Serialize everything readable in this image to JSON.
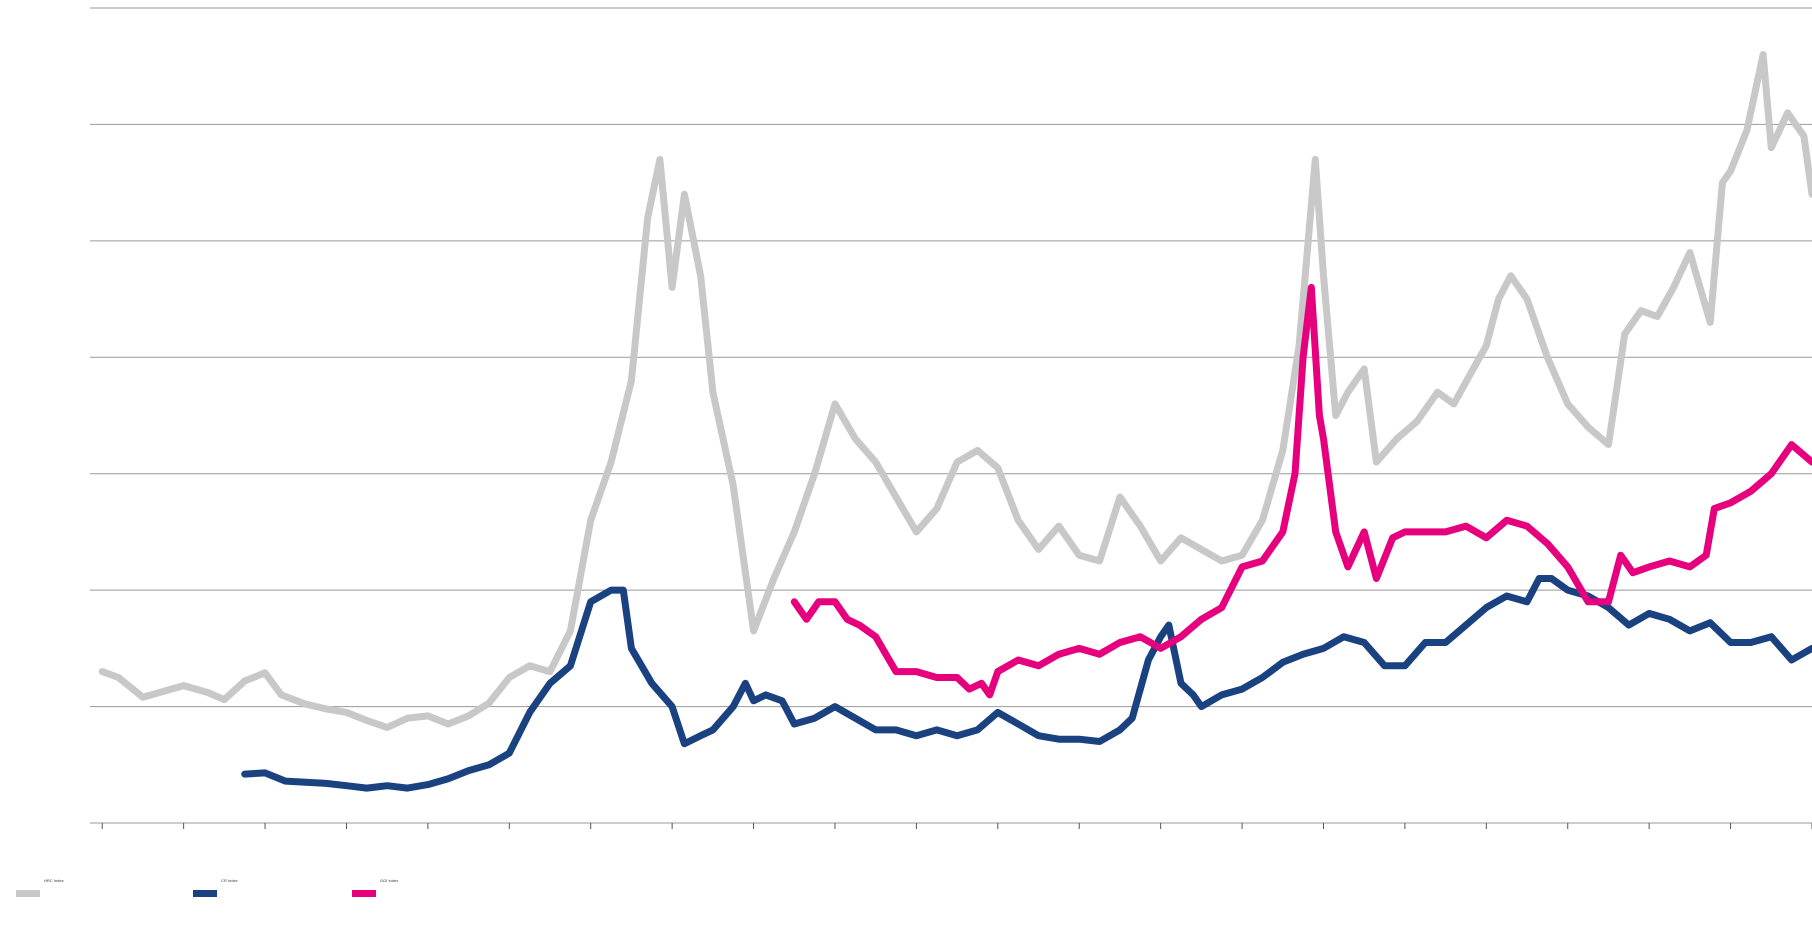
{
  "chart_data": {
    "type": "line",
    "title": "",
    "xlabel": "",
    "ylabel": "",
    "x_range": [
      1982.7,
      2025.0
    ],
    "ylim": [
      0,
      7
    ],
    "y_ticks": [
      0,
      1,
      2,
      3,
      4,
      5,
      6,
      7
    ],
    "x_ticks": [
      1983,
      1985,
      1987,
      1989,
      1991,
      1993,
      1995,
      1997,
      1999,
      2001,
      2003,
      2005,
      2007,
      2009,
      2011,
      2013,
      2015,
      2017,
      2019,
      2021,
      2023,
      2025
    ],
    "grid": true,
    "legend_position": "bottom-left",
    "colors": {
      "hrc": "#c8c8c8",
      "cr": "#1a4280",
      "ggi": "#e6007e",
      "y_tick": "#e6007e",
      "x_tick": "#3b4fb8",
      "grid": "#999999"
    },
    "series": [
      {
        "name": "HRC Index",
        "color": "#c8c8c8",
        "points": [
          [
            1983.0,
            1.3
          ],
          [
            1983.4,
            1.25
          ],
          [
            1984.0,
            1.08
          ],
          [
            1984.4,
            1.12
          ],
          [
            1985.0,
            1.18
          ],
          [
            1985.6,
            1.12
          ],
          [
            1986.0,
            1.06
          ],
          [
            1986.5,
            1.22
          ],
          [
            1987.0,
            1.29
          ],
          [
            1987.4,
            1.1
          ],
          [
            1988.0,
            1.02
          ],
          [
            1988.5,
            0.98
          ],
          [
            1989.0,
            0.95
          ],
          [
            1989.5,
            0.88
          ],
          [
            1990.0,
            0.82
          ],
          [
            1990.5,
            0.9
          ],
          [
            1991.0,
            0.92
          ],
          [
            1991.5,
            0.85
          ],
          [
            1992.0,
            0.92
          ],
          [
            1992.5,
            1.03
          ],
          [
            1993.0,
            1.25
          ],
          [
            1993.5,
            1.35
          ],
          [
            1994.0,
            1.3
          ],
          [
            1994.5,
            1.65
          ],
          [
            1995.0,
            2.6
          ],
          [
            1995.5,
            3.1
          ],
          [
            1996.0,
            3.8
          ],
          [
            1996.4,
            5.2
          ],
          [
            1996.7,
            5.7
          ],
          [
            1997.0,
            4.6
          ],
          [
            1997.3,
            5.4
          ],
          [
            1997.7,
            4.7
          ],
          [
            1998.0,
            3.7
          ],
          [
            1998.5,
            2.9
          ],
          [
            1999.0,
            1.65
          ],
          [
            1999.5,
            2.1
          ],
          [
            2000.0,
            2.5
          ],
          [
            2000.5,
            3.0
          ],
          [
            2001.0,
            3.6
          ],
          [
            2001.5,
            3.3
          ],
          [
            2002.0,
            3.1
          ],
          [
            2002.5,
            2.8
          ],
          [
            2003.0,
            2.5
          ],
          [
            2003.5,
            2.7
          ],
          [
            2004.0,
            3.1
          ],
          [
            2004.5,
            3.2
          ],
          [
            2005.0,
            3.05
          ],
          [
            2005.5,
            2.6
          ],
          [
            2006.0,
            2.35
          ],
          [
            2006.5,
            2.55
          ],
          [
            2007.0,
            2.3
          ],
          [
            2007.5,
            2.25
          ],
          [
            2008.0,
            2.8
          ],
          [
            2008.5,
            2.55
          ],
          [
            2009.0,
            2.25
          ],
          [
            2009.5,
            2.45
          ],
          [
            2010.0,
            2.35
          ],
          [
            2010.5,
            2.25
          ],
          [
            2011.0,
            2.3
          ],
          [
            2011.5,
            2.6
          ],
          [
            2012.0,
            3.2
          ],
          [
            2012.4,
            4.1
          ],
          [
            2012.8,
            5.7
          ],
          [
            2013.0,
            4.7
          ],
          [
            2013.3,
            3.5
          ],
          [
            2013.6,
            3.7
          ],
          [
            2014.0,
            3.9
          ],
          [
            2014.3,
            3.1
          ],
          [
            2014.8,
            3.3
          ],
          [
            2015.3,
            3.45
          ],
          [
            2015.8,
            3.7
          ],
          [
            2016.2,
            3.6
          ],
          [
            2016.6,
            3.85
          ],
          [
            2017.0,
            4.1
          ],
          [
            2017.3,
            4.5
          ],
          [
            2017.6,
            4.7
          ],
          [
            2018.0,
            4.5
          ],
          [
            2018.5,
            4.0
          ],
          [
            2019.0,
            3.6
          ],
          [
            2019.5,
            3.4
          ],
          [
            2020.0,
            3.25
          ],
          [
            2020.4,
            4.2
          ],
          [
            2020.8,
            4.4
          ],
          [
            2021.2,
            4.35
          ],
          [
            2021.6,
            4.6
          ],
          [
            2022.0,
            4.9
          ],
          [
            2022.5,
            4.3
          ],
          [
            2022.8,
            5.5
          ],
          [
            2023.0,
            5.6
          ],
          [
            2023.4,
            5.95
          ],
          [
            2023.8,
            6.6
          ],
          [
            2024.0,
            5.8
          ],
          [
            2024.4,
            6.1
          ],
          [
            2024.8,
            5.9
          ],
          [
            2025.0,
            5.4
          ]
        ]
      },
      {
        "name": "CR Index",
        "color": "#1a4280",
        "points": [
          [
            1986.5,
            0.42
          ],
          [
            1987.0,
            0.43
          ],
          [
            1987.5,
            0.36
          ],
          [
            1988.0,
            0.35
          ],
          [
            1988.5,
            0.34
          ],
          [
            1989.0,
            0.32
          ],
          [
            1989.5,
            0.3
          ],
          [
            1990.0,
            0.32
          ],
          [
            1990.5,
            0.3
          ],
          [
            1991.0,
            0.33
          ],
          [
            1991.5,
            0.38
          ],
          [
            1992.0,
            0.45
          ],
          [
            1992.5,
            0.5
          ],
          [
            1993.0,
            0.6
          ],
          [
            1993.5,
            0.95
          ],
          [
            1994.0,
            1.2
          ],
          [
            1994.5,
            1.35
          ],
          [
            1995.0,
            1.9
          ],
          [
            1995.5,
            2.0
          ],
          [
            1995.8,
            2.0
          ],
          [
            1996.0,
            1.5
          ],
          [
            1996.5,
            1.2
          ],
          [
            1997.0,
            1.0
          ],
          [
            1997.3,
            0.68
          ],
          [
            1997.7,
            0.75
          ],
          [
            1998.0,
            0.8
          ],
          [
            1998.5,
            1.0
          ],
          [
            1998.8,
            1.2
          ],
          [
            1999.0,
            1.05
          ],
          [
            1999.3,
            1.1
          ],
          [
            1999.7,
            1.05
          ],
          [
            2000.0,
            0.85
          ],
          [
            2000.5,
            0.9
          ],
          [
            2001.0,
            1.0
          ],
          [
            2001.5,
            0.9
          ],
          [
            2002.0,
            0.8
          ],
          [
            2002.5,
            0.8
          ],
          [
            2003.0,
            0.75
          ],
          [
            2003.5,
            0.8
          ],
          [
            2004.0,
            0.75
          ],
          [
            2004.5,
            0.8
          ],
          [
            2005.0,
            0.95
          ],
          [
            2005.5,
            0.85
          ],
          [
            2006.0,
            0.75
          ],
          [
            2006.5,
            0.72
          ],
          [
            2007.0,
            0.72
          ],
          [
            2007.5,
            0.7
          ],
          [
            2008.0,
            0.8
          ],
          [
            2008.3,
            0.9
          ],
          [
            2008.7,
            1.4
          ],
          [
            2009.0,
            1.6
          ],
          [
            2009.2,
            1.7
          ],
          [
            2009.5,
            1.2
          ],
          [
            2009.8,
            1.1
          ],
          [
            2010.0,
            1.0
          ],
          [
            2010.5,
            1.1
          ],
          [
            2011.0,
            1.15
          ],
          [
            2011.5,
            1.25
          ],
          [
            2012.0,
            1.38
          ],
          [
            2012.5,
            1.45
          ],
          [
            2013.0,
            1.5
          ],
          [
            2013.5,
            1.6
          ],
          [
            2014.0,
            1.55
          ],
          [
            2014.5,
            1.35
          ],
          [
            2015.0,
            1.35
          ],
          [
            2015.5,
            1.55
          ],
          [
            2016.0,
            1.55
          ],
          [
            2016.5,
            1.7
          ],
          [
            2017.0,
            1.85
          ],
          [
            2017.5,
            1.95
          ],
          [
            2018.0,
            1.9
          ],
          [
            2018.3,
            2.1
          ],
          [
            2018.6,
            2.1
          ],
          [
            2019.0,
            2.0
          ],
          [
            2019.5,
            1.95
          ],
          [
            2020.0,
            1.85
          ],
          [
            2020.5,
            1.7
          ],
          [
            2021.0,
            1.8
          ],
          [
            2021.5,
            1.75
          ],
          [
            2022.0,
            1.65
          ],
          [
            2022.5,
            1.72
          ],
          [
            2023.0,
            1.55
          ],
          [
            2023.5,
            1.55
          ],
          [
            2024.0,
            1.6
          ],
          [
            2024.5,
            1.4
          ],
          [
            2025.0,
            1.5
          ]
        ]
      },
      {
        "name": "GGI Index",
        "color": "#e6007e",
        "points": [
          [
            2000.0,
            1.9
          ],
          [
            2000.3,
            1.75
          ],
          [
            2000.6,
            1.9
          ],
          [
            2001.0,
            1.9
          ],
          [
            2001.3,
            1.75
          ],
          [
            2001.6,
            1.7
          ],
          [
            2002.0,
            1.6
          ],
          [
            2002.5,
            1.3
          ],
          [
            2003.0,
            1.3
          ],
          [
            2003.5,
            1.25
          ],
          [
            2004.0,
            1.25
          ],
          [
            2004.3,
            1.15
          ],
          [
            2004.6,
            1.2
          ],
          [
            2004.8,
            1.1
          ],
          [
            2005.0,
            1.3
          ],
          [
            2005.5,
            1.4
          ],
          [
            2006.0,
            1.35
          ],
          [
            2006.5,
            1.45
          ],
          [
            2007.0,
            1.5
          ],
          [
            2007.5,
            1.45
          ],
          [
            2008.0,
            1.55
          ],
          [
            2008.5,
            1.6
          ],
          [
            2009.0,
            1.5
          ],
          [
            2009.5,
            1.6
          ],
          [
            2010.0,
            1.75
          ],
          [
            2010.5,
            1.85
          ],
          [
            2011.0,
            2.2
          ],
          [
            2011.5,
            2.25
          ],
          [
            2012.0,
            2.5
          ],
          [
            2012.3,
            3.0
          ],
          [
            2012.5,
            4.0
          ],
          [
            2012.7,
            4.6
          ],
          [
            2012.9,
            3.5
          ],
          [
            2013.0,
            3.3
          ],
          [
            2013.3,
            2.5
          ],
          [
            2013.6,
            2.2
          ],
          [
            2014.0,
            2.5
          ],
          [
            2014.3,
            2.1
          ],
          [
            2014.7,
            2.45
          ],
          [
            2015.0,
            2.5
          ],
          [
            2015.5,
            2.5
          ],
          [
            2016.0,
            2.5
          ],
          [
            2016.5,
            2.55
          ],
          [
            2017.0,
            2.45
          ],
          [
            2017.5,
            2.6
          ],
          [
            2018.0,
            2.55
          ],
          [
            2018.5,
            2.4
          ],
          [
            2019.0,
            2.2
          ],
          [
            2019.5,
            1.9
          ],
          [
            2020.0,
            1.9
          ],
          [
            2020.3,
            2.3
          ],
          [
            2020.6,
            2.15
          ],
          [
            2021.0,
            2.2
          ],
          [
            2021.5,
            2.25
          ],
          [
            2022.0,
            2.2
          ],
          [
            2022.4,
            2.3
          ],
          [
            2022.6,
            2.7
          ],
          [
            2023.0,
            2.75
          ],
          [
            2023.5,
            2.85
          ],
          [
            2024.0,
            3.0
          ],
          [
            2024.5,
            3.25
          ],
          [
            2025.0,
            3.1
          ],
          [
            2025.5,
            2.7
          ],
          [
            2026.0,
            2.9
          ]
        ]
      }
    ],
    "y_tick_labels": [
      "",
      "",
      "",
      "",
      "",
      "",
      "",
      ""
    ],
    "x_tick_labels": [
      "",
      "",
      "",
      "",
      "",
      "",
      "",
      "",
      "",
      "",
      "",
      "",
      "",
      "",
      "",
      "",
      "",
      "",
      "",
      "",
      "",
      ""
    ]
  },
  "legend": {
    "items": [
      {
        "label": "HRC Index",
        "color": "#c8c8c8"
      },
      {
        "label": "CR Index",
        "color": "#1a4280"
      },
      {
        "label": "GGI Index",
        "color": "#e6007e"
      }
    ]
  },
  "footnote": ""
}
